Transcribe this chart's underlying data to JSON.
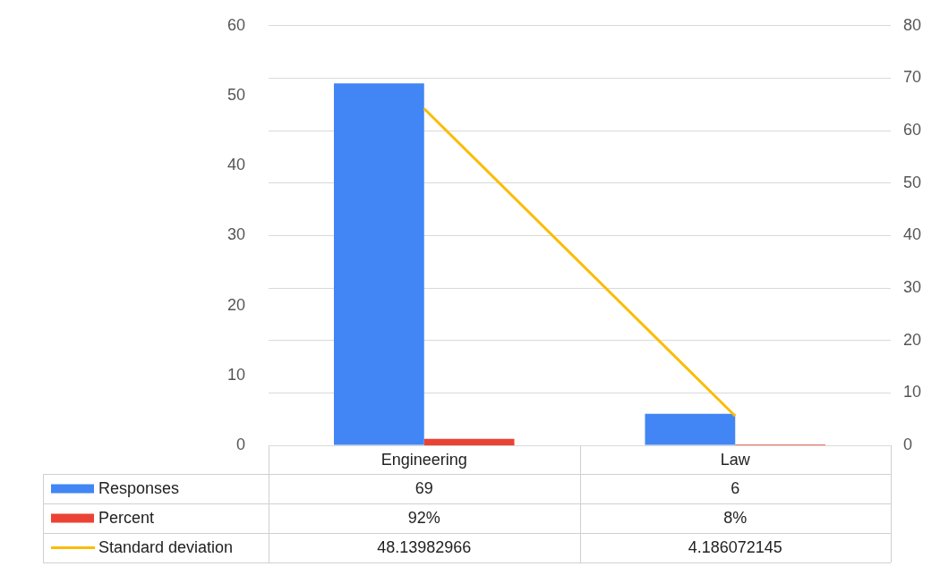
{
  "chart_data": {
    "type": "bar",
    "categories": [
      "Engineering",
      "Law"
    ],
    "series": [
      {
        "name": "Responses",
        "type": "bar",
        "axis": "y2",
        "color": "#4285f4",
        "values": [
          69,
          6
        ],
        "value_labels": [
          "69",
          "6"
        ]
      },
      {
        "name": "Percent",
        "type": "bar",
        "color": "#ea4335",
        "values": [
          0.92,
          0.08
        ],
        "value_labels": [
          "92%",
          "8%"
        ]
      },
      {
        "name": "Standard deviation",
        "type": "line",
        "color": "#fbbc04",
        "values": [
          48.13982966,
          4.186072145
        ],
        "value_labels": [
          "48.13982966",
          "4.186072145"
        ]
      }
    ],
    "ylim": [
      0,
      60
    ],
    "yticks": [
      0,
      10,
      20,
      30,
      40,
      50,
      60
    ],
    "y2lim": [
      0,
      80
    ],
    "y2ticks": [
      0,
      10,
      20,
      30,
      40,
      50,
      60,
      70,
      80
    ],
    "grid": true,
    "legend": "bottom",
    "marker": "none"
  }
}
